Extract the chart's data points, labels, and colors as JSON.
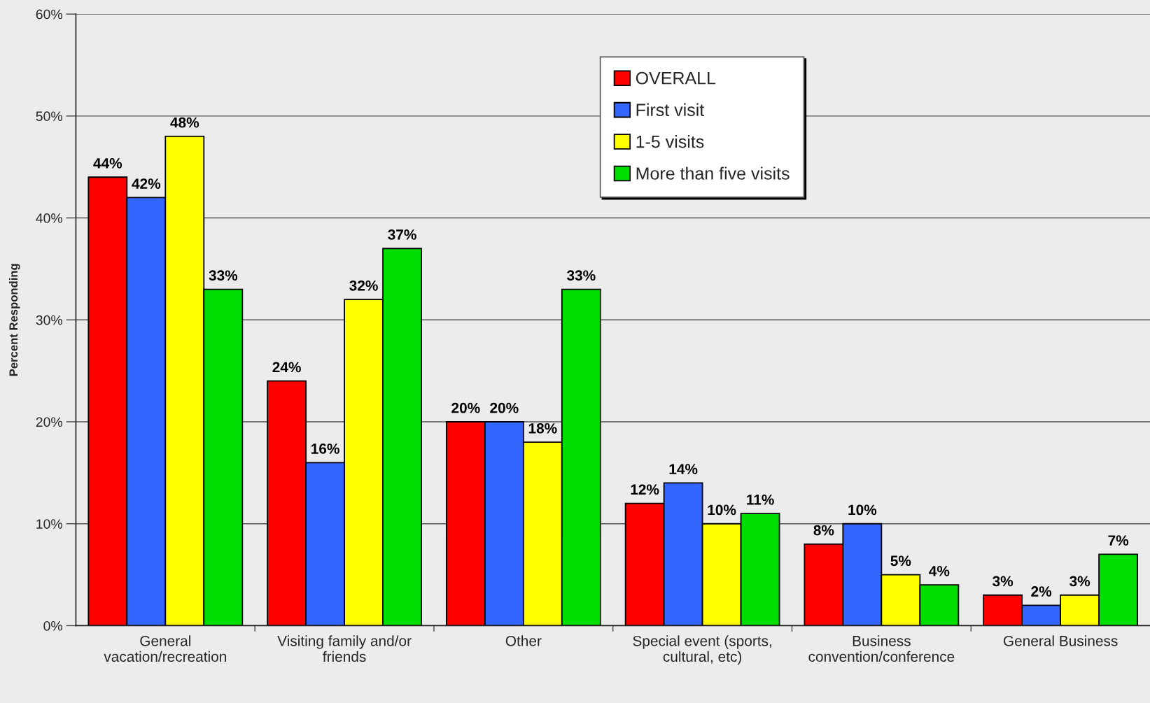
{
  "chart_data": {
    "type": "bar",
    "ylabel": "Percent Responding",
    "categories": [
      "General\nvacation/recreation",
      "Visiting family and/or\nfriends",
      "Other",
      "Special event (sports,\ncultural, etc)",
      "Business\nconvention/conference",
      "General Business"
    ],
    "series": [
      {
        "name": "OVERALL",
        "color": "#ff0000",
        "values": [
          44,
          24,
          20,
          12,
          8,
          3
        ],
        "value_labels": [
          "44%",
          "24%",
          "20%",
          "12%",
          "8%",
          "3%"
        ]
      },
      {
        "name": "First visit",
        "color": "#3366ff",
        "values": [
          42,
          16,
          20,
          14,
          10,
          2
        ],
        "value_labels": [
          "42%",
          "16%",
          "20%",
          "14%",
          "10%",
          "2%"
        ]
      },
      {
        "name": "1-5 visits",
        "color": "#ffff00",
        "values": [
          48,
          32,
          18,
          10,
          5,
          3
        ],
        "value_labels": [
          "48%",
          "32%",
          "18%",
          "10%",
          "5%",
          "3%"
        ]
      },
      {
        "name": "More than five visits",
        "color": "#00dd00",
        "values": [
          33,
          37,
          33,
          11,
          4,
          7
        ],
        "value_labels": [
          "33%",
          "37%",
          "33%",
          "11%",
          "4%",
          "7%"
        ]
      }
    ],
    "ylim": [
      0,
      60
    ],
    "yticks": [
      {
        "value": 0,
        "label": "0%"
      },
      {
        "value": 10,
        "label": "10%"
      },
      {
        "value": 20,
        "label": "20%"
      },
      {
        "value": 30,
        "label": "30%"
      },
      {
        "value": 40,
        "label": "40%"
      },
      {
        "value": 50,
        "label": "50%"
      },
      {
        "value": 60,
        "label": "60%"
      }
    ],
    "grid": "y",
    "legend": "top"
  }
}
